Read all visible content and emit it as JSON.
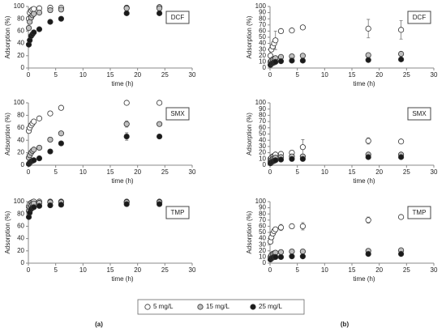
{
  "chart_data": [
    {
      "type": "scatter",
      "title": "DCF",
      "xlabel": "time (h)",
      "ylabel": "Adsorption (%)",
      "xlim": [
        0,
        30
      ],
      "xticks": [
        0,
        5,
        10,
        15,
        20,
        25,
        30
      ],
      "ylim": [
        0,
        100
      ],
      "yticks": [
        0,
        20,
        40,
        60,
        80,
        100
      ],
      "x": [
        0.08,
        0.25,
        0.5,
        0.75,
        1,
        2,
        4,
        6,
        18,
        24
      ],
      "series": [
        {
          "color": "#ffffff",
          "values": [
            80,
            90,
            93,
            95,
            96,
            97,
            98,
            98,
            98,
            99
          ]
        },
        {
          "color": "#bfbfbf",
          "values": [
            65,
            75,
            82,
            86,
            88,
            90,
            94,
            95,
            97,
            97
          ]
        },
        {
          "color": "#1a1a1a",
          "values": [
            38,
            45,
            52,
            55,
            58,
            63,
            75,
            80,
            89,
            89
          ]
        }
      ]
    },
    {
      "type": "scatter",
      "title": "SMX",
      "xlabel": "time (h)",
      "ylabel": "Adsorption (%)",
      "xlim": [
        0,
        30
      ],
      "xticks": [
        0,
        5,
        10,
        15,
        20,
        25,
        30
      ],
      "ylim": [
        0,
        100
      ],
      "yticks": [
        0,
        20,
        40,
        60,
        80,
        100
      ],
      "x": [
        0.08,
        0.25,
        0.5,
        0.75,
        1,
        2,
        4,
        6,
        18,
        24
      ],
      "series": [
        {
          "color": "#ffffff",
          "values": [
            55,
            60,
            64,
            67,
            70,
            75,
            83,
            92,
            100,
            100
          ]
        },
        {
          "color": "#bfbfbf",
          "values": [
            12,
            16,
            20,
            23,
            25,
            28,
            41,
            51,
            66,
            66
          ],
          "errors": [
            null,
            null,
            null,
            null,
            null,
            null,
            null,
            null,
            5,
            3
          ]
        },
        {
          "color": "#1a1a1a",
          "values": [
            2,
            4,
            6,
            7,
            8,
            11,
            22,
            35,
            46,
            46
          ],
          "errors": [
            null,
            null,
            null,
            null,
            null,
            null,
            null,
            null,
            6,
            null
          ]
        }
      ]
    },
    {
      "type": "scatter",
      "title": "TMP",
      "xlabel": "time (h)",
      "ylabel": "Adsorption (%)",
      "xlim": [
        0,
        30
      ],
      "xticks": [
        0,
        5,
        10,
        15,
        20,
        25,
        30
      ],
      "ylim": [
        0,
        100
      ],
      "yticks": [
        0,
        20,
        40,
        60,
        80,
        100
      ],
      "x": [
        0.08,
        0.25,
        0.5,
        0.75,
        1,
        2,
        4,
        6,
        18,
        24
      ],
      "series": [
        {
          "color": "#ffffff",
          "values": [
            92,
            96,
            98,
            99,
            100,
            100,
            100,
            100,
            100,
            100
          ]
        },
        {
          "color": "#bfbfbf",
          "values": [
            85,
            90,
            94,
            96,
            97,
            98,
            99,
            99,
            99,
            99
          ]
        },
        {
          "color": "#1a1a1a",
          "values": [
            75,
            82,
            88,
            90,
            91,
            93,
            94,
            95,
            96,
            96
          ]
        }
      ]
    },
    {
      "type": "scatter",
      "title": "DCF",
      "xlabel": "time (h)",
      "ylabel": "Adsorption (%)",
      "xlim": [
        0,
        30
      ],
      "xticks": [
        0,
        5,
        10,
        15,
        20,
        25,
        30
      ],
      "ylim": [
        0,
        100
      ],
      "yticks": [
        0,
        10,
        20,
        30,
        40,
        50,
        60,
        70,
        80,
        90,
        100
      ],
      "x": [
        0.08,
        0.25,
        0.5,
        0.75,
        1,
        2,
        4,
        6,
        18,
        24
      ],
      "series": [
        {
          "color": "#ffffff",
          "values": [
            20,
            30,
            35,
            40,
            45,
            60,
            61,
            66,
            64,
            62
          ],
          "errors": [
            null,
            null,
            null,
            null,
            15,
            null,
            null,
            null,
            15,
            15
          ]
        },
        {
          "color": "#bfbfbf",
          "values": [
            10,
            12,
            14,
            15,
            16,
            18,
            19,
            20,
            21,
            23
          ]
        },
        {
          "color": "#1a1a1a",
          "values": [
            5,
            7,
            8,
            9,
            10,
            11,
            12,
            12,
            13,
            14
          ]
        }
      ]
    },
    {
      "type": "scatter",
      "title": "SMX",
      "xlabel": "time (h)",
      "ylabel": "Adsorption (%)",
      "xlim": [
        0,
        30
      ],
      "xticks": [
        0,
        5,
        10,
        15,
        20,
        25,
        30
      ],
      "ylim": [
        0,
        100
      ],
      "yticks": [
        0,
        10,
        20,
        30,
        40,
        50,
        60,
        70,
        80,
        90,
        100
      ],
      "x": [
        0.08,
        0.25,
        0.5,
        0.75,
        1,
        2,
        4,
        6,
        18,
        24
      ],
      "series": [
        {
          "color": "#ffffff",
          "values": [
            10,
            12,
            14,
            15,
            17,
            18,
            20,
            29,
            39,
            38
          ],
          "errors": [
            null,
            null,
            null,
            null,
            null,
            null,
            null,
            12,
            5,
            null
          ]
        },
        {
          "color": "#bfbfbf",
          "values": [
            6,
            8,
            10,
            11,
            12,
            13,
            14,
            14,
            17,
            17
          ]
        },
        {
          "color": "#1a1a1a",
          "values": [
            3,
            5,
            6,
            7,
            8,
            9,
            10,
            10,
            13,
            13
          ]
        }
      ]
    },
    {
      "type": "scatter",
      "title": "TMP",
      "xlabel": "time (h)",
      "ylabel": "Adsorption (%)",
      "xlim": [
        0,
        30
      ],
      "xticks": [
        0,
        5,
        10,
        15,
        20,
        25,
        30
      ],
      "ylim": [
        0,
        100
      ],
      "yticks": [
        0,
        10,
        20,
        30,
        40,
        50,
        60,
        70,
        80,
        90,
        100
      ],
      "x": [
        0.08,
        0.25,
        0.5,
        0.75,
        1,
        2,
        4,
        6,
        18,
        24
      ],
      "series": [
        {
          "color": "#ffffff",
          "values": [
            35,
            42,
            48,
            52,
            55,
            58,
            60,
            60,
            70,
            75
          ],
          "errors": [
            null,
            null,
            null,
            null,
            null,
            5,
            null,
            6,
            5,
            null
          ]
        },
        {
          "color": "#bfbfbf",
          "values": [
            10,
            13,
            15,
            16,
            17,
            18,
            19,
            19,
            20,
            21
          ]
        },
        {
          "color": "#1a1a1a",
          "values": [
            6,
            8,
            9,
            10,
            10,
            10,
            11,
            11,
            15,
            15
          ]
        }
      ]
    }
  ],
  "legend": [
    {
      "name": "5 mg/L",
      "color": "#ffffff"
    },
    {
      "name": "15 mg/L",
      "color": "#bfbfbf"
    },
    {
      "name": "25 mg/L",
      "color": "#1a1a1a"
    }
  ],
  "column_labels": [
    "(a)",
    "(b)"
  ]
}
